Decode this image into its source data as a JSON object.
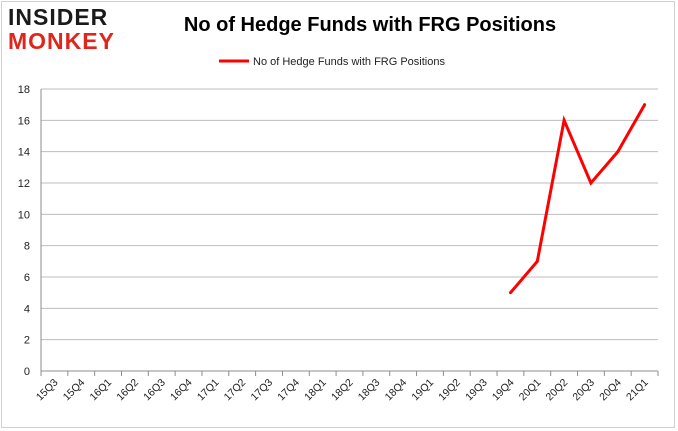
{
  "logo": {
    "line1": "INSIDER",
    "line2": "MONKEY"
  },
  "chart_data": {
    "type": "line",
    "title": "No of Hedge Funds with FRG Positions",
    "xlabel": "",
    "ylabel": "",
    "categories": [
      "15Q3",
      "15Q4",
      "16Q1",
      "16Q2",
      "16Q3",
      "16Q4",
      "17Q1",
      "17Q2",
      "17Q3",
      "17Q4",
      "18Q1",
      "18Q2",
      "18Q3",
      "18Q4",
      "19Q1",
      "19Q2",
      "19Q3",
      "19Q4",
      "20Q1",
      "20Q2",
      "20Q3",
      "20Q4",
      "21Q1"
    ],
    "ylim": [
      0,
      18
    ],
    "yticks": [
      0,
      2,
      4,
      6,
      8,
      10,
      12,
      14,
      16,
      18
    ],
    "grid": "horizontal",
    "legend_position": "top-center",
    "series": [
      {
        "name": "No of Hedge Funds with FRG Positions",
        "color": "#ff0000",
        "values": [
          null,
          null,
          null,
          null,
          null,
          null,
          null,
          null,
          null,
          null,
          null,
          null,
          null,
          null,
          null,
          null,
          null,
          5,
          7,
          16,
          12,
          14,
          17
        ]
      }
    ]
  }
}
